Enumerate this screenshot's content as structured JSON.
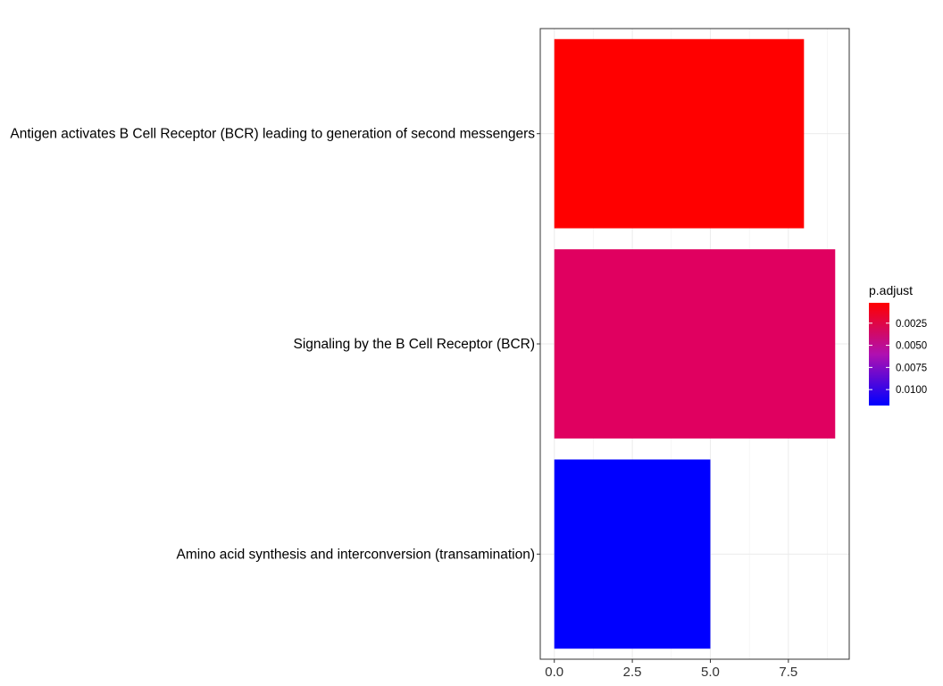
{
  "chart_data": {
    "type": "bar",
    "orientation": "horizontal",
    "categories": [
      "Antigen activates B Cell Receptor (BCR) leading to generation of second messengers",
      "Signaling by the B Cell Receptor (BCR)",
      "Amino acid synthesis and interconversion (transamination)"
    ],
    "values": [
      8,
      9,
      5
    ],
    "p_adjust": [
      0.0002,
      0.0035,
      0.0118
    ],
    "bar_colors": [
      "#FF0000",
      "#E00060",
      "#0000FF"
    ],
    "x_ticks": [
      "0.0",
      "2.5",
      "5.0",
      "7.5"
    ],
    "x_tick_values": [
      0,
      2.5,
      5,
      7.5
    ],
    "xlim": [
      -0.45,
      9.45
    ],
    "xlabel": "",
    "ylabel": "",
    "grid": true,
    "legend": {
      "title": "p.adjust",
      "position": "right",
      "ticks": [
        "0.0025",
        "0.0050",
        "0.0075",
        "0.0100"
      ],
      "tick_values": [
        0.0025,
        0.005,
        0.0075,
        0.01
      ],
      "range": [
        0.0002,
        0.0118
      ],
      "colors": {
        "low": "#FF0000",
        "mid": "#B010B0",
        "high": "#0000FF"
      }
    }
  }
}
